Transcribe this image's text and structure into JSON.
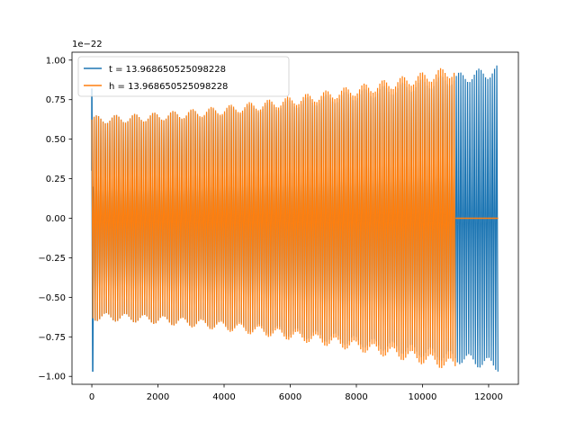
{
  "chart_data": {
    "type": "line",
    "title": "",
    "xlabel": "",
    "ylabel": "",
    "offset_text": "1e−22",
    "xlim": [
      -600,
      12900
    ],
    "ylim": [
      -1.05,
      1.05
    ],
    "x_ticks": [
      0,
      2000,
      4000,
      6000,
      8000,
      10000,
      12000
    ],
    "x_tick_labels": [
      "0",
      "2000",
      "4000",
      "6000",
      "8000",
      "10000",
      "12000"
    ],
    "y_ticks": [
      -1.0,
      -0.75,
      -0.5,
      -0.25,
      0.0,
      0.25,
      0.5,
      0.75,
      1.0
    ],
    "y_tick_labels": [
      "−1.00",
      "−0.75",
      "−0.50",
      "−0.25",
      "0.00",
      "0.25",
      "0.50",
      "0.75",
      "1.00"
    ],
    "grid": false,
    "legend_position": "top-left",
    "series": [
      {
        "name": "t = 13.968650525098228",
        "color": "#1f77b4",
        "x_range": [
          0,
          12290
        ],
        "envelope_start": 0.65,
        "envelope_end": 0.97,
        "initial_spike": [
          0.82,
          -0.97
        ]
      },
      {
        "name": "h = 13.968650525098228",
        "color": "#ff7f0e",
        "x_range": [
          0,
          11000
        ],
        "envelope_start": 0.65,
        "envelope_end": 0.97,
        "tail_range": [
          11000,
          12290
        ],
        "tail_value": 0.0
      }
    ]
  }
}
